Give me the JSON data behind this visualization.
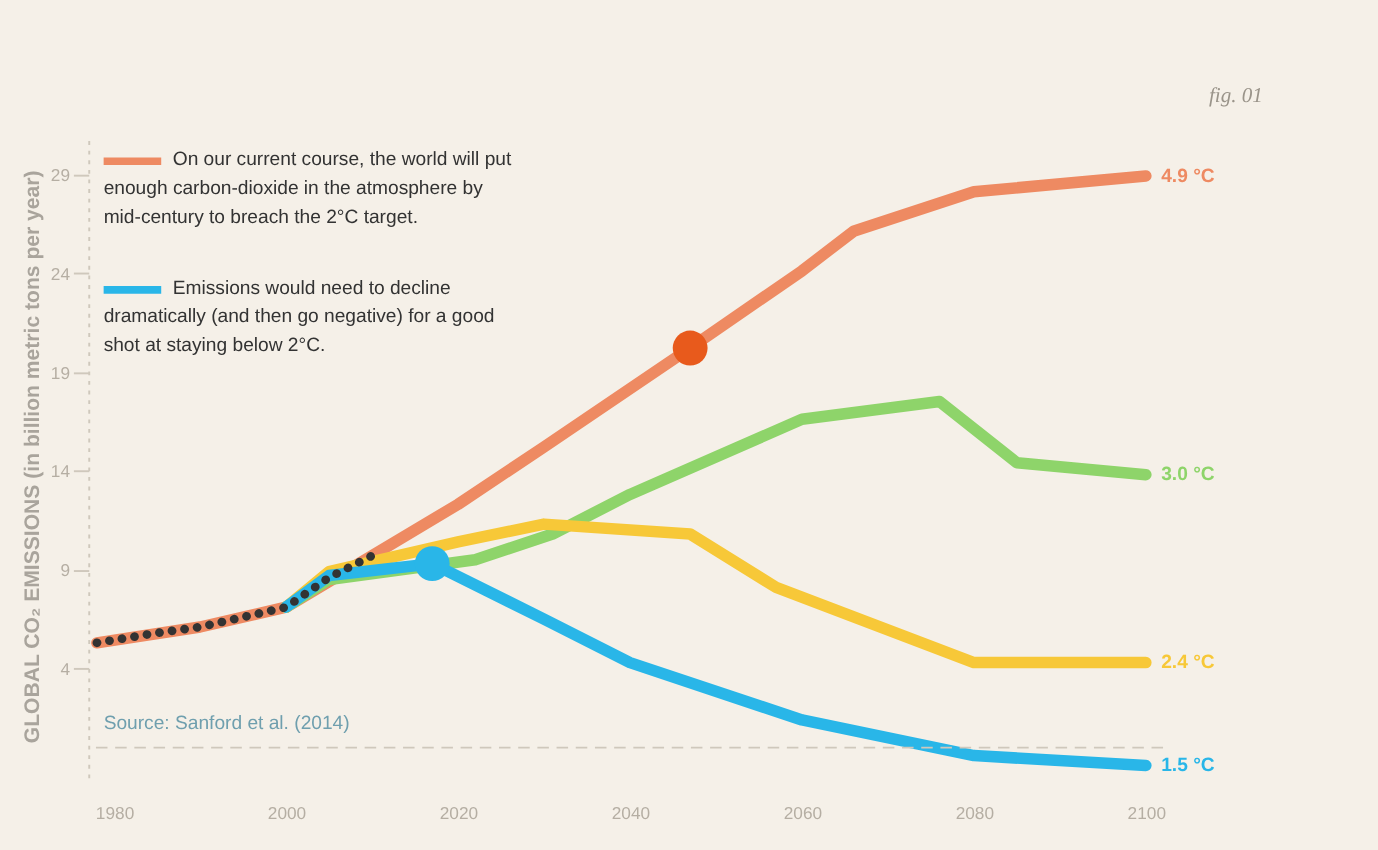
{
  "chart_data": {
    "type": "line",
    "ylabel": "GLOBAL CO₂ EMISSIONS (in billion metric tons per year)",
    "xlim": [
      1977,
      2102
    ],
    "xticks": [
      1980,
      2000,
      2020,
      2040,
      2060,
      2080,
      2100
    ],
    "ylim": [
      -1.5,
      31
    ],
    "yticks": [
      4,
      9,
      14,
      19,
      24,
      29
    ],
    "grid": false,
    "legend": false,
    "ref_lines": [
      {
        "axis": "y",
        "value": 0,
        "label": null,
        "color": "#cfc8bc",
        "line_style": "dashed"
      }
    ],
    "annotations": [
      "On our current course, the world will put\nenough carbon-dioxide in the atmosphere by\nmid-century to breach the 2°C target.",
      "Emissions would need to decline\ndramatically (and then go negative) for a good\nshot at staying below 2°C.",
      "Source: Sanford et al. (2014)",
      "fig. 01"
    ],
    "series": [
      {
        "name": "4.9 °C",
        "line_style": "solid",
        "color": "#ee8a62",
        "x": [
          1978,
          1990,
          2000,
          2010,
          2020,
          2030,
          2047,
          2060,
          2066,
          2080,
          2100
        ],
        "values": [
          5.3,
          6.1,
          7.1,
          9.7,
          12.3,
          15.2,
          20.2,
          24.1,
          26.1,
          28.1,
          28.9
        ]
      },
      {
        "name": "3.0 °C",
        "line_style": "solid",
        "color": "#8ed46a",
        "x": [
          2000,
          2005,
          2022,
          2031,
          2040,
          2060,
          2076,
          2085,
          2100
        ],
        "values": [
          7.1,
          8.5,
          9.5,
          10.8,
          12.8,
          16.6,
          17.5,
          14.4,
          13.8
        ]
      },
      {
        "name": "2.4 °C",
        "line_style": "solid",
        "color": "#f7c838",
        "x": [
          2000,
          2005,
          2020,
          2030,
          2047,
          2057,
          2080,
          2100
        ],
        "values": [
          7.1,
          8.9,
          10.4,
          11.3,
          10.8,
          8.1,
          4.3,
          4.3
        ]
      },
      {
        "name": "1.5 °C",
        "line_style": "solid",
        "color": "#29b6e8",
        "x": [
          2000,
          2005,
          2017,
          2030,
          2040,
          2060,
          2080,
          2100
        ],
        "values": [
          7.1,
          8.7,
          9.3,
          6.5,
          4.3,
          1.4,
          -0.4,
          -0.9
        ]
      },
      {
        "line_style": "dotted",
        "color": "#333333",
        "x": [
          1978,
          1985,
          1990,
          1995,
          2000,
          2005,
          2010
        ],
        "values": [
          5.3,
          5.8,
          6.1,
          6.6,
          7.1,
          8.6,
          9.7
        ]
      },
      {
        "type": "scatter",
        "marker": "circle",
        "color": "#e85a1c",
        "x": [
          2047
        ],
        "values": [
          20.2
        ]
      },
      {
        "type": "scatter",
        "marker": "circle",
        "color": "#29b6e8",
        "x": [
          2017
        ],
        "values": [
          9.3
        ]
      }
    ]
  }
}
